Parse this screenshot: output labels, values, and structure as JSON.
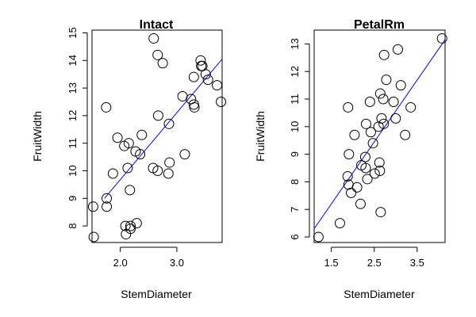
{
  "chart_data": [
    {
      "type": "scatter",
      "title": "Intact",
      "xlabel": "StemDiameter",
      "ylabel": "FruitWidth",
      "xlim": [
        1.5,
        3.8
      ],
      "ylim": [
        7.4,
        15.1
      ],
      "x_ticks": [
        2.0,
        3.0
      ],
      "x_tick_labels": [
        "2.0",
        "3.0"
      ],
      "y_ticks": [
        8,
        9,
        10,
        11,
        12,
        13,
        14,
        15
      ],
      "y_tick_labels": [
        "8",
        "9",
        "10",
        "11",
        "12",
        "13",
        "14",
        "15"
      ],
      "x": [
        1.52,
        1.53,
        1.75,
        1.76,
        1.76,
        1.87,
        1.95,
        2.07,
        2.09,
        2.1,
        2.13,
        2.15,
        2.17,
        2.18,
        2.18,
        2.27,
        2.29,
        2.35,
        2.38,
        2.58,
        2.59,
        2.66,
        2.66,
        2.67,
        2.75,
        2.85,
        2.86,
        2.87,
        3.1,
        3.14,
        3.25,
        3.3,
        3.3,
        3.31,
        3.42,
        3.43,
        3.45,
        3.51,
        3.55,
        3.71,
        3.78
      ],
      "y": [
        8.7,
        7.6,
        12.3,
        9.0,
        8.7,
        9.9,
        11.2,
        10.9,
        8.0,
        7.7,
        10.1,
        11.0,
        9.3,
        8.0,
        7.9,
        10.7,
        8.1,
        10.6,
        11.3,
        10.1,
        14.8,
        10.0,
        14.2,
        12.0,
        13.9,
        9.9,
        11.7,
        10.3,
        12.7,
        10.6,
        12.6,
        13.4,
        12.4,
        12.3,
        14.0,
        13.8,
        13.8,
        13.5,
        13.3,
        13.1,
        12.5
      ],
      "fit_line": {
        "x": [
          1.72,
          3.8
        ],
        "y": [
          9.0,
          14.05
        ]
      },
      "grid": false,
      "legend": "none"
    },
    {
      "type": "scatter",
      "title": "PetalRm",
      "xlabel": "StemDiameter",
      "ylabel": "FruitWidth",
      "xlim": [
        1.1,
        4.15
      ],
      "ylim": [
        5.8,
        13.5
      ],
      "x_ticks": [
        1.5,
        2.5,
        3.5
      ],
      "x_tick_labels": [
        "1.5",
        "2.5",
        "3.5"
      ],
      "y_ticks": [
        6,
        7,
        8,
        9,
        10,
        11,
        12,
        13
      ],
      "y_tick_labels": [
        "6",
        "7",
        "8",
        "9",
        "10",
        "11",
        "12",
        "13"
      ],
      "x": [
        1.2,
        1.7,
        1.88,
        1.89,
        1.9,
        1.91,
        1.96,
        2.04,
        2.1,
        2.18,
        2.2,
        2.29,
        2.3,
        2.31,
        2.34,
        2.4,
        2.42,
        2.47,
        2.51,
        2.6,
        2.62,
        2.63,
        2.64,
        2.65,
        2.67,
        2.71,
        2.72,
        2.73,
        2.78,
        2.95,
        3.0,
        3.05,
        3.12,
        3.22,
        3.35,
        4.08
      ],
      "y": [
        6.0,
        6.5,
        8.2,
        10.7,
        7.9,
        9.0,
        7.6,
        9.7,
        7.8,
        7.2,
        8.6,
        8.9,
        8.5,
        10.1,
        8.1,
        10.9,
        9.8,
        9.4,
        8.3,
        10.0,
        8.7,
        8.4,
        11.2,
        6.9,
        10.3,
        11.0,
        10.1,
        12.6,
        11.7,
        10.9,
        10.3,
        12.8,
        11.5,
        9.7,
        10.7,
        13.2
      ],
      "fit_line": {
        "x": [
          1.1,
          4.15
        ],
        "y": [
          6.3,
          13.15
        ]
      },
      "grid": false,
      "legend": "none"
    }
  ]
}
